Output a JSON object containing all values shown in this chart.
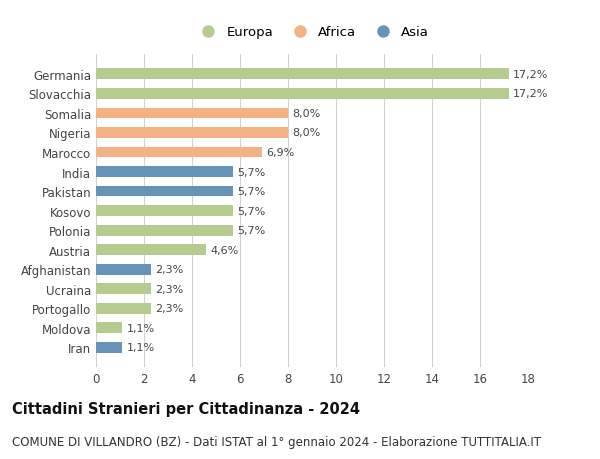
{
  "categories": [
    "Germania",
    "Slovacchia",
    "Somalia",
    "Nigeria",
    "Marocco",
    "India",
    "Pakistan",
    "Kosovo",
    "Polonia",
    "Austria",
    "Afghanistan",
    "Ucraina",
    "Portogallo",
    "Moldova",
    "Iran"
  ],
  "values": [
    17.2,
    17.2,
    8.0,
    8.0,
    6.9,
    5.7,
    5.7,
    5.7,
    5.7,
    4.6,
    2.3,
    2.3,
    2.3,
    1.1,
    1.1
  ],
  "continents": [
    "Europa",
    "Europa",
    "Africa",
    "Africa",
    "Africa",
    "Asia",
    "Asia",
    "Europa",
    "Europa",
    "Europa",
    "Asia",
    "Europa",
    "Europa",
    "Europa",
    "Asia"
  ],
  "labels": [
    "17,2%",
    "17,2%",
    "8,0%",
    "8,0%",
    "6,9%",
    "5,7%",
    "5,7%",
    "5,7%",
    "5,7%",
    "4,6%",
    "2,3%",
    "2,3%",
    "2,3%",
    "1,1%",
    "1,1%"
  ],
  "colors": {
    "Europa": "#b5cc8e",
    "Africa": "#f4b183",
    "Asia": "#6694b8"
  },
  "legend_labels": [
    "Europa",
    "Africa",
    "Asia"
  ],
  "title": "Cittadini Stranieri per Cittadinanza - 2024",
  "subtitle": "COMUNE DI VILLANDRO (BZ) - Dati ISTAT al 1° gennaio 2024 - Elaborazione TUTTITALIA.IT",
  "xlim": [
    0,
    18
  ],
  "xticks": [
    0,
    2,
    4,
    6,
    8,
    10,
    12,
    14,
    16,
    18
  ],
  "background_color": "#ffffff",
  "grid_color": "#d0d0d0",
  "bar_height": 0.55,
  "title_fontsize": 10.5,
  "subtitle_fontsize": 8.5,
  "label_fontsize": 8,
  "tick_fontsize": 8.5,
  "legend_fontsize": 9.5
}
